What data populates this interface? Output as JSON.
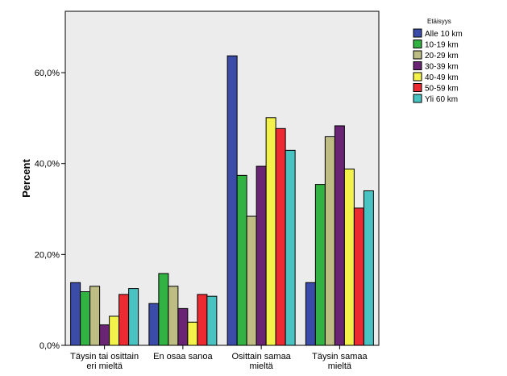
{
  "chart_data": {
    "type": "bar",
    "categories": [
      [
        "Täysin tai osittain",
        "eri mieltä"
      ],
      [
        "En osaa sanoa"
      ],
      [
        "Osittain samaa",
        "mieltä"
      ],
      [
        "Täysin samaa",
        "mieltä"
      ]
    ],
    "ylabel": "Percent",
    "ylim": [
      0,
      73.5
    ],
    "yticks": [
      0,
      20,
      40,
      60
    ],
    "ytick_labels": [
      "0,0%",
      "20,0%",
      "40,0%",
      "60,0%"
    ],
    "grid": false,
    "legend": {
      "title": "Etäisyys",
      "placement": "top-right-outside"
    },
    "series": [
      {
        "name": "Alle 10 km",
        "color": "#3B4BA8",
        "values": [
          13.8,
          9.2,
          63.7,
          13.8
        ]
      },
      {
        "name": "10-19 km",
        "color": "#33B244",
        "values": [
          11.8,
          15.8,
          37.4,
          35.4
        ]
      },
      {
        "name": "20-29 km",
        "color": "#BDBD84",
        "values": [
          13.0,
          13.0,
          28.4,
          45.9
        ]
      },
      {
        "name": "30-39 km",
        "color": "#6A2474",
        "values": [
          4.5,
          8.1,
          39.4,
          48.3
        ]
      },
      {
        "name": "40-49 km",
        "color": "#F2F24B",
        "values": [
          6.4,
          5.1,
          50.1,
          38.8
        ]
      },
      {
        "name": "50-59 km",
        "color": "#EC2A32",
        "values": [
          11.2,
          11.2,
          47.7,
          30.2
        ]
      },
      {
        "name": "Yli 60 km",
        "color": "#49C3C2",
        "values": [
          12.5,
          10.8,
          42.9,
          34.0
        ]
      }
    ]
  }
}
